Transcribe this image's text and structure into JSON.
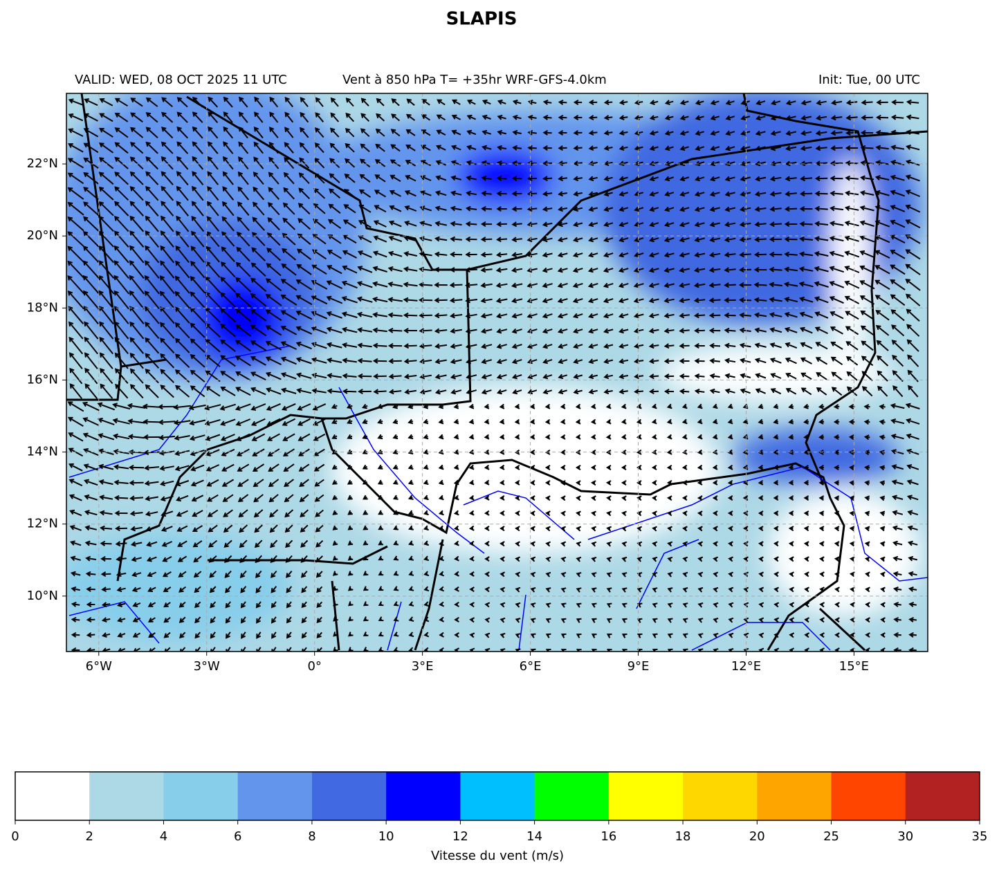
{
  "header": {
    "title": "SLAPIS",
    "left_label": "VALID: WED, 08 OCT 2025 11 UTC",
    "center_label": "Vent à 850 hPa T= +35hr  WRF-GFS-4.0km",
    "right_label": "Init: Tue, 00 UTC"
  },
  "map": {
    "xlim": [
      -6.9,
      17.05
    ],
    "ylim": [
      8.46,
      23.96
    ],
    "xticks": [
      {
        "value": -6,
        "label": "6°W"
      },
      {
        "value": -3,
        "label": "3°W"
      },
      {
        "value": 0,
        "label": "0°"
      },
      {
        "value": 3,
        "label": "3°E"
      },
      {
        "value": 6,
        "label": "6°E"
      },
      {
        "value": 9,
        "label": "9°E"
      },
      {
        "value": 12,
        "label": "12°E"
      },
      {
        "value": 15,
        "label": "15°E"
      }
    ],
    "yticks": [
      {
        "value": 10,
        "label": "10°N"
      },
      {
        "value": 12,
        "label": "12°N"
      },
      {
        "value": 14,
        "label": "14°N"
      },
      {
        "value": 16,
        "label": "16°N"
      },
      {
        "value": 18,
        "label": "18°N"
      },
      {
        "value": 20,
        "label": "20°N"
      },
      {
        "value": 22,
        "label": "22°N"
      }
    ],
    "grid": true
  },
  "colorbar": {
    "label": "Vitesse du vent (m/s)",
    "levels": [
      0,
      2,
      4,
      6,
      8,
      10,
      12,
      14,
      16,
      18,
      20,
      25,
      30,
      35
    ],
    "colors": [
      "#ffffff",
      "#add8e6",
      "#87ceeb",
      "#6495ed",
      "#4169e1",
      "#0000ff",
      "#00bfff",
      "#00ff00",
      "#ffff00",
      "#ffd700",
      "#ffa500",
      "#ff4500",
      "#b22222"
    ]
  }
}
